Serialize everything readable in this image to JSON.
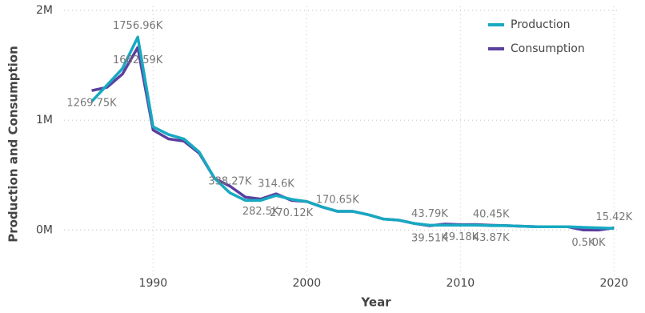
{
  "chart_data": {
    "type": "line",
    "x": [
      1986,
      1987,
      1988,
      1989,
      1990,
      1991,
      1992,
      1993,
      1994,
      1995,
      1996,
      1997,
      1998,
      1999,
      2000,
      2001,
      2002,
      2003,
      2004,
      2005,
      2006,
      2007,
      2008,
      2009,
      2010,
      2011,
      2012,
      2013,
      2014,
      2015,
      2016,
      2017,
      2018,
      2019,
      2020
    ],
    "series": [
      {
        "name": "Production",
        "color": "#17a9c1",
        "values": [
          1170000,
          1320000,
          1470000,
          1756960,
          940000,
          870000,
          830000,
          710000,
          470000,
          338270,
          270000,
          270000,
          314600,
          280000,
          260000,
          210000,
          170650,
          170000,
          140000,
          100000,
          90000,
          60000,
          43790,
          45000,
          45000,
          45000,
          40450,
          40000,
          35000,
          30000,
          30000,
          30000,
          25000,
          20000,
          15420
        ],
        "value_labels": [
          null,
          null,
          null,
          "1756.96K",
          null,
          null,
          null,
          null,
          null,
          "338.27K",
          null,
          null,
          "314.6K",
          null,
          null,
          null,
          "170.65K",
          null,
          null,
          null,
          null,
          null,
          "43.79K",
          null,
          null,
          null,
          "40.45K",
          null,
          null,
          null,
          null,
          null,
          null,
          null,
          "15.42K"
        ]
      },
      {
        "name": "Consumption",
        "color": "#5b3fa0",
        "values": [
          1269750,
          1300000,
          1420000,
          1662590,
          910000,
          830000,
          810000,
          700000,
          470000,
          400000,
          300000,
          282500,
          330000,
          270120,
          260000,
          210000,
          170000,
          170000,
          140000,
          100000,
          90000,
          60000,
          39510,
          55000,
          49180,
          50000,
          43870,
          40000,
          35000,
          30000,
          30000,
          30000,
          500,
          0,
          20000
        ],
        "value_labels": [
          "1269.75K",
          null,
          null,
          "1662.59K",
          null,
          null,
          null,
          null,
          null,
          null,
          null,
          "282.5K",
          null,
          "270.12K",
          null,
          null,
          null,
          null,
          null,
          null,
          null,
          null,
          "39.51K",
          null,
          "49.18K",
          null,
          "43.87K",
          null,
          null,
          null,
          null,
          null,
          "0.5K",
          "0K",
          null
        ]
      }
    ],
    "xlabel": "Year",
    "ylabel": "Production and Consumption",
    "xlim": [
      1984.2,
      2020.4
    ],
    "xticks": [
      1990,
      2000,
      2010,
      2020
    ],
    "ylim": [
      -420000,
      2000000
    ],
    "yticks": [
      {
        "value": 0,
        "label": "0M"
      },
      {
        "value": 1000000,
        "label": "1M"
      },
      {
        "value": 2000000,
        "label": "2M"
      }
    ],
    "grid": true,
    "legend": "top-right"
  }
}
